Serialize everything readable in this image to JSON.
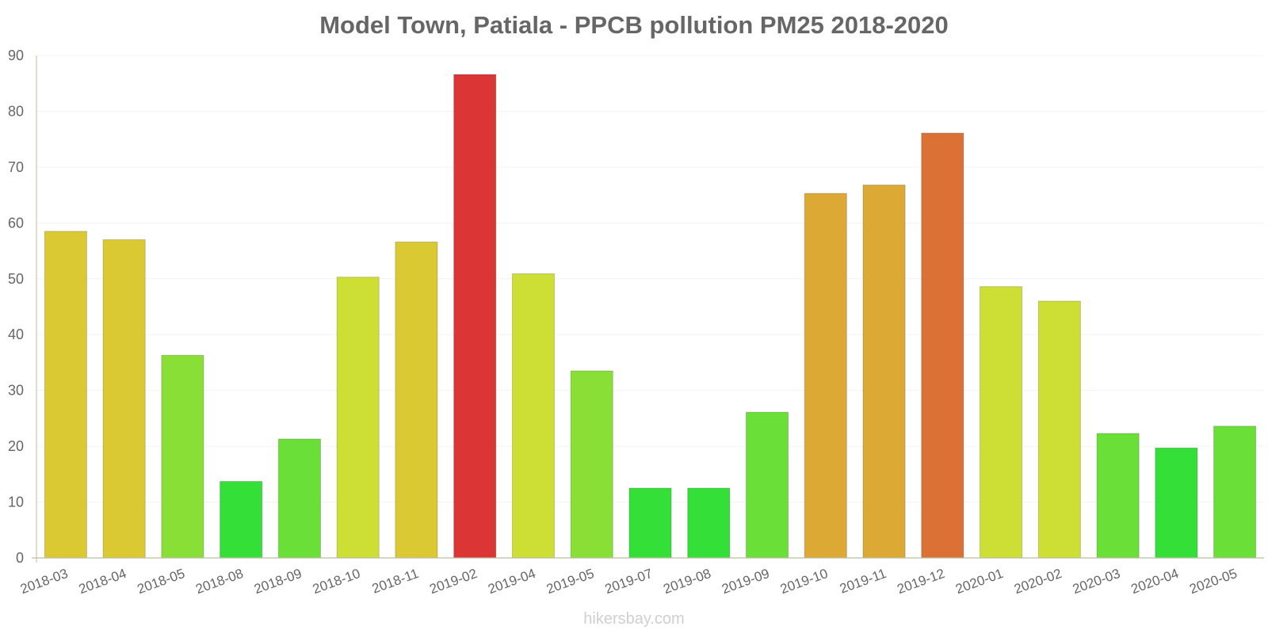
{
  "chart_data": {
    "type": "bar",
    "title": "Model Town, Patiala - PPCB pollution PM25 2018-2020",
    "categories": [
      "2018-03",
      "2018-04",
      "2018-05",
      "2018-08",
      "2018-09",
      "2018-10",
      "2018-11",
      "2019-02",
      "2019-04",
      "2019-05",
      "2019-07",
      "2019-08",
      "2019-09",
      "2019-10",
      "2019-11",
      "2019-12",
      "2020-01",
      "2020-02",
      "2020-03",
      "2020-04",
      "2020-05"
    ],
    "values": [
      58.5,
      57,
      36.3,
      13.7,
      21.3,
      50.3,
      56.6,
      86.6,
      50.9,
      33.5,
      12.5,
      12.5,
      26.1,
      65.3,
      66.8,
      76.1,
      48.6,
      46,
      22.3,
      19.7,
      23.6
    ],
    "colors": [
      "#dbc934",
      "#dbc934",
      "#8adf37",
      "#34df37",
      "#6adf37",
      "#cddf34",
      "#dbc934",
      "#dc3535",
      "#cddf34",
      "#8adf37",
      "#34df37",
      "#34df37",
      "#6adf37",
      "#dca935",
      "#dca935",
      "#dc7135",
      "#cddf34",
      "#cddf34",
      "#6adf37",
      "#34df37",
      "#6adf37"
    ],
    "yticks": [
      0,
      10,
      20,
      30,
      40,
      50,
      60,
      70,
      80,
      90
    ],
    "ylim": [
      0,
      90
    ],
    "xlabel": "",
    "ylabel": "",
    "watermark": "hikersbay.com"
  }
}
